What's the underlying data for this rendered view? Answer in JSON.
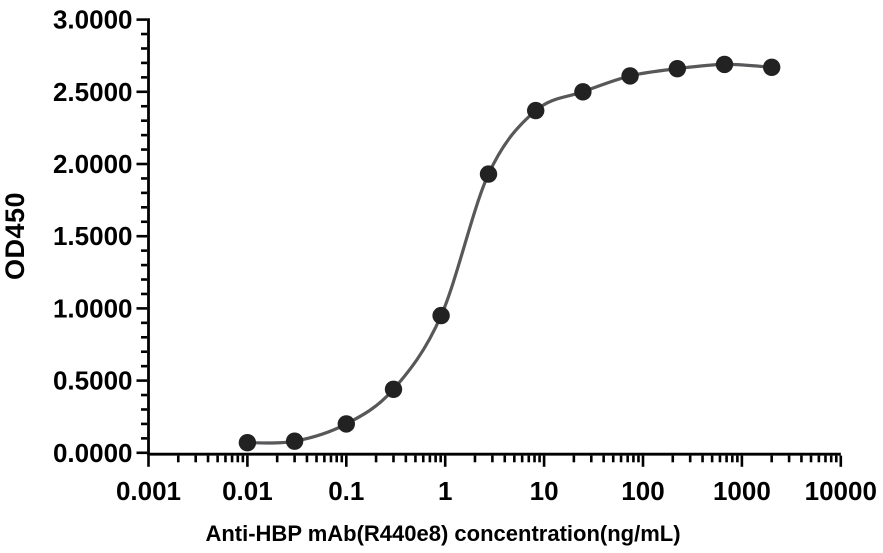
{
  "chart_data": {
    "type": "line",
    "title": "",
    "xlabel": "Anti-HBP mAb(R440e8) concentration(ng/mL)",
    "ylabel": "OD450",
    "x_scale": "log10",
    "xlim": [
      0.001,
      10000
    ],
    "ylim": [
      0.0,
      3.0
    ],
    "grid": false,
    "legend": "none",
    "x_major_ticks": [
      0.001,
      0.01,
      0.1,
      1,
      10,
      100,
      1000,
      10000
    ],
    "x_tick_labels": [
      "0.001",
      "0.01",
      "0.1",
      "1",
      "10",
      "100",
      "1000",
      "10000"
    ],
    "x_minor_multiples": [
      2,
      3,
      4,
      5,
      6,
      7,
      8,
      9
    ],
    "y_major_ticks": [
      0.0,
      0.5,
      1.0,
      1.5,
      2.0,
      2.5,
      3.0
    ],
    "y_tick_labels": [
      "0.0000",
      "0.5000",
      "1.0000",
      "1.5000",
      "2.0000",
      "2.5000",
      "3.0000"
    ],
    "y_minor_tick_step": 0.1,
    "series": [
      {
        "name": "Anti-HBP mAb(R440e8)",
        "marker": "filled-circle",
        "x": [
          0.01,
          0.03,
          0.1,
          0.3,
          0.91,
          2.74,
          8.23,
          24.7,
          74.1,
          222,
          667,
          2000
        ],
        "y": [
          0.07,
          0.08,
          0.2,
          0.44,
          0.95,
          1.93,
          2.37,
          2.5,
          2.61,
          2.66,
          2.69,
          2.67
        ]
      }
    ],
    "colors": {
      "marker": "#222222",
      "line": "#58585a",
      "axis": "#000000",
      "text": "#000000",
      "background": "#ffffff"
    }
  }
}
